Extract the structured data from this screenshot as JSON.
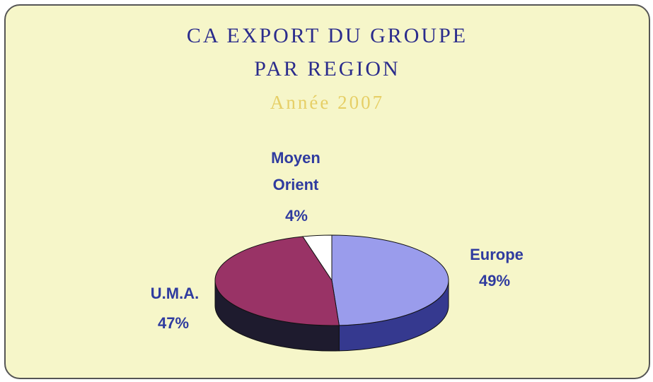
{
  "chart_data": {
    "type": "pie3d",
    "title": [
      "CA EXPORT  DU GROUPE",
      "PAR REGION"
    ],
    "subtitle": "Année 2007",
    "categories": [
      "Europe",
      "U.M.A.",
      "Moyen Orient"
    ],
    "values": [
      49,
      47,
      4
    ],
    "value_labels": [
      "49%",
      "47%",
      "4%"
    ],
    "colors": [
      "#9a9cec",
      "#993366",
      "#ffffff"
    ],
    "side_colors": [
      "#35398f",
      "#1e1b2e",
      "#d8d8d8"
    ]
  }
}
